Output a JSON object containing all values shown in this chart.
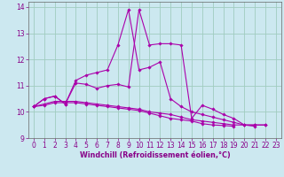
{
  "xlabel": "Windchill (Refroidissement éolien,°C)",
  "background_color": "#cce8f0",
  "grid_color": "#a0ccc0",
  "line_color": "#aa00aa",
  "spine_color": "#666666",
  "xlim": [
    -0.5,
    23.5
  ],
  "ylim": [
    9.0,
    14.2
  ],
  "yticks": [
    9,
    10,
    11,
    12,
    13,
    14
  ],
  "xticks": [
    0,
    1,
    2,
    3,
    4,
    5,
    6,
    7,
    8,
    9,
    10,
    11,
    12,
    13,
    14,
    15,
    16,
    17,
    18,
    19,
    20,
    21,
    22,
    23
  ],
  "tick_fontsize": 5.5,
  "xlabel_fontsize": 5.8,
  "series": [
    [
      10.2,
      10.5,
      10.6,
      10.3,
      11.1,
      11.05,
      10.9,
      11.0,
      11.05,
      10.95,
      13.9,
      12.55,
      12.6,
      12.6,
      12.55,
      9.75,
      10.25,
      10.1,
      9.9,
      9.75,
      9.5,
      9.5,
      9.5
    ],
    [
      10.2,
      10.5,
      10.6,
      10.3,
      11.2,
      11.4,
      11.5,
      11.6,
      12.55,
      13.9,
      11.6,
      11.7,
      11.9,
      10.5,
      10.2,
      10.0,
      9.9,
      9.8,
      9.7,
      9.6,
      9.5,
      9.45
    ],
    [
      10.2,
      10.3,
      10.4,
      10.4,
      10.4,
      10.35,
      10.3,
      10.25,
      10.2,
      10.15,
      10.1,
      10.0,
      9.95,
      9.9,
      9.8,
      9.7,
      9.65,
      9.6,
      9.55,
      9.5,
      9.5,
      9.5,
      9.5
    ],
    [
      10.2,
      10.25,
      10.35,
      10.35,
      10.35,
      10.3,
      10.25,
      10.2,
      10.15,
      10.1,
      10.05,
      9.95,
      9.85,
      9.75,
      9.7,
      9.65,
      9.55,
      9.5,
      9.48,
      9.45
    ]
  ],
  "series_x": [
    [
      0,
      1,
      2,
      3,
      4,
      5,
      6,
      7,
      8,
      9,
      10,
      11,
      12,
      13,
      14,
      15,
      16,
      17,
      18,
      19,
      20,
      21,
      22
    ],
    [
      0,
      1,
      2,
      3,
      4,
      5,
      6,
      7,
      8,
      9,
      10,
      11,
      12,
      13,
      14,
      15,
      16,
      17,
      18,
      19,
      20,
      21
    ],
    [
      0,
      1,
      2,
      3,
      4,
      5,
      6,
      7,
      8,
      9,
      10,
      11,
      12,
      13,
      14,
      15,
      16,
      17,
      18,
      19,
      20,
      21,
      22
    ],
    [
      0,
      1,
      2,
      3,
      4,
      5,
      6,
      7,
      8,
      9,
      10,
      11,
      12,
      13,
      14,
      15,
      16,
      17,
      18,
      19
    ]
  ]
}
